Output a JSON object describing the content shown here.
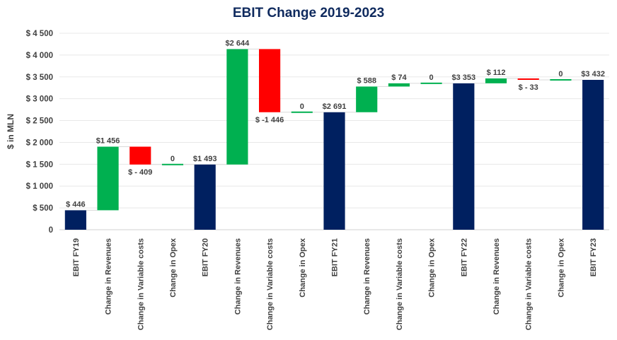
{
  "chart_data": {
    "type": "bar",
    "subtype": "waterfall",
    "title": "EBIT Change 2019-2023",
    "ylabel": "$ in MLN",
    "xlabel": "",
    "ylim": [
      0,
      4500
    ],
    "yticks": [
      0,
      500,
      1000,
      1500,
      2000,
      2500,
      3000,
      3500,
      4000,
      4500
    ],
    "ytick_labels": [
      "0",
      "$  500",
      "$ 1 000",
      "$ 1 500",
      "$ 2 000",
      "$ 2 500",
      "$ 3 000",
      "$ 3 500",
      "$ 4 000",
      "$ 4 500"
    ],
    "grid": true,
    "legend": "none",
    "colors": {
      "total": "#002060",
      "increase": "#00b050",
      "decrease": "#ff0000",
      "connector": "#d9d9d9",
      "grid": "#e8e8e8",
      "title": "#0f2a5e"
    },
    "categories": [
      "EBIT FY19",
      "Change in Revenues",
      "Change in Variable costs",
      "Change in Opex",
      "EBIT FY20",
      "Change in Revenues",
      "Change in Variable costs",
      "Change in Opex",
      "EBIT FY21",
      "Change in Revenues",
      "Change in Variable costs",
      "Change in Opex",
      "EBIT FY22",
      "Change in Revenues",
      "Change in Variable costs",
      "Change in Opex",
      "EBIT FY23"
    ],
    "kinds": [
      "total",
      "increase",
      "decrease",
      "increase",
      "total",
      "increase",
      "decrease",
      "increase",
      "total",
      "increase",
      "increase",
      "increase",
      "total",
      "increase",
      "decrease",
      "increase",
      "total"
    ],
    "values": [
      446,
      1456,
      -409,
      0,
      1493,
      2644,
      -1446,
      0,
      2691,
      588,
      74,
      0,
      3353,
      112,
      -33,
      0,
      3432
    ],
    "data_labels": [
      "$ 446",
      "$1 456",
      "$ - 409",
      "0",
      "$1 493",
      "$2 644",
      "$ -1 446",
      "0",
      "$2 691",
      "$ 588",
      "$ 74",
      "0",
      "$3 353",
      "$ 112",
      "$ - 33",
      "0",
      "$3 432"
    ]
  }
}
